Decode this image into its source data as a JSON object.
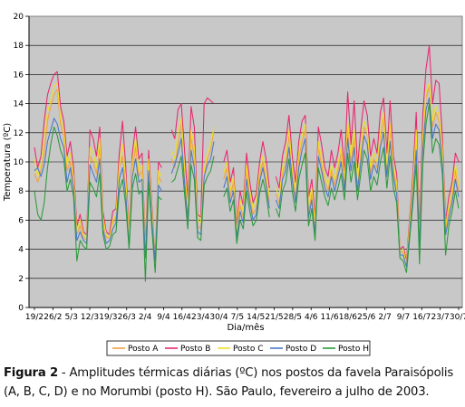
{
  "caption": {
    "label": "Figura 2",
    "text": " - Amplitudes térmicas diárias (ºC) nos postos da favela Paraisópolis (A, B, C, D) e no Morumbi (posto H). São Paulo, fevereiro a julho de 2003."
  },
  "chart_data": {
    "type": "line",
    "xlabel": "Dia/mês",
    "ylabel": "Temperatura (ºC)",
    "ylim": [
      0,
      20
    ],
    "yticks": [
      0,
      2,
      4,
      6,
      8,
      10,
      12,
      14,
      16,
      18,
      20
    ],
    "x_tick_labels": [
      "19/2",
      "26/2",
      "5/3",
      "12/3",
      "19/3",
      "26/3",
      "2/4",
      "9/4",
      "16/4",
      "23/4",
      "30/4",
      "7/5",
      "14/5",
      "21/5",
      "28/5",
      "4/6",
      "11/6",
      "18/6",
      "25/6",
      "2/7",
      "9/7",
      "16/7",
      "23/7",
      "30/7"
    ],
    "grid": "horizontal",
    "legend_position": "bottom",
    "series": [
      {
        "name": "Posto A",
        "color": "#f2a040",
        "values": [
          9.2,
          8.6,
          9.4,
          10.6,
          12.8,
          13.8,
          14.6,
          15.0,
          12.6,
          11.8,
          9.4,
          10.0,
          8.6,
          5.0,
          5.6,
          4.8,
          4.6,
          10.4,
          10.0,
          9.2,
          11.0,
          6.0,
          4.8,
          4.8,
          5.8,
          6.2,
          9.6,
          10.4,
          8.4,
          4.6,
          9.6,
          11.0,
          9.0,
          9.4,
          3.6,
          9.8,
          6.4,
          3.2,
          9.0,
          8.6,
          null,
          null,
          10.2,
          9.6,
          11.2,
          12.6,
          9.2,
          6.4,
          11.6,
          10.4,
          5.6,
          5.4,
          9.0,
          10.2,
          10.8,
          12.2,
          null,
          null,
          8.8,
          9.6,
          7.6,
          8.6,
          5.0,
          7.0,
          6.2,
          9.4,
          7.6,
          6.4,
          6.8,
          9.0,
          10.0,
          8.8,
          7.2,
          null,
          7.8,
          7.2,
          9.2,
          9.8,
          11.8,
          9.2,
          7.6,
          10.2,
          11.4,
          12.2,
          6.6,
          7.8,
          5.4,
          11.0,
          9.8,
          8.6,
          8.0,
          9.4,
          8.4,
          9.4,
          10.6,
          8.4,
          12.2,
          10.0,
          11.6,
          8.4,
          10.6,
          12.4,
          11.8,
          9.2,
          10.2,
          9.6,
          11.6,
          13.0,
          9.4,
          12.2,
          9.4,
          8.2,
          3.8,
          3.8,
          2.8,
          5.6,
          8.2,
          11.8,
          4.4,
          11.4,
          14.4,
          15.2,
          12.4,
          13.4,
          12.8,
          10.6,
          5.4,
          6.6,
          7.6,
          9.4,
          8.0
        ],
        "count": 0
      },
      {
        "name": "Posto B",
        "color": "#e8266e",
        "values": [
          11.0,
          9.6,
          10.4,
          12.8,
          14.6,
          15.4,
          16.0,
          16.2,
          13.8,
          12.8,
          10.4,
          11.4,
          9.6,
          5.6,
          6.4,
          5.2,
          5.0,
          12.2,
          11.6,
          10.4,
          12.4,
          6.6,
          5.2,
          5.0,
          6.6,
          6.8,
          10.6,
          12.8,
          9.6,
          5.0,
          10.6,
          12.4,
          10.2,
          10.6,
          4.0,
          10.8,
          7.0,
          3.2,
          10.0,
          9.6,
          null,
          null,
          12.2,
          11.6,
          13.6,
          14.0,
          10.8,
          7.4,
          13.8,
          12.4,
          6.4,
          6.2,
          14.0,
          14.4,
          14.2,
          14.0,
          null,
          null,
          10.0,
          10.8,
          8.6,
          9.6,
          5.6,
          8.0,
          7.0,
          10.6,
          8.6,
          7.2,
          7.8,
          10.0,
          11.4,
          10.2,
          8.2,
          null,
          9.0,
          8.2,
          10.4,
          11.4,
          13.2,
          10.4,
          8.6,
          11.4,
          12.8,
          13.2,
          7.6,
          8.8,
          6.2,
          12.4,
          11.2,
          9.6,
          9.0,
          10.8,
          9.6,
          10.6,
          12.2,
          9.4,
          14.8,
          11.2,
          14.2,
          9.6,
          12.2,
          14.2,
          13.2,
          10.4,
          11.6,
          10.6,
          13.4,
          14.4,
          10.6,
          14.2,
          10.4,
          9.2,
          4.0,
          4.2,
          3.2,
          6.2,
          9.2,
          13.4,
          5.2,
          13.2,
          16.4,
          18.0,
          14.0,
          15.6,
          15.4,
          11.8,
          6.0,
          7.6,
          8.6,
          10.6,
          10.0
        ],
        "count": 0
      },
      {
        "name": "Posto C",
        "color": "#f0e020",
        "values": [
          10.2,
          9.0,
          9.8,
          11.8,
          13.4,
          14.2,
          15.2,
          15.4,
          13.0,
          12.2,
          9.8,
          10.6,
          9.0,
          5.2,
          6.0,
          5.0,
          4.8,
          11.0,
          10.6,
          9.6,
          11.6,
          6.2,
          5.0,
          4.8,
          6.0,
          6.4,
          9.8,
          11.2,
          8.8,
          4.8,
          10.0,
          11.6,
          9.4,
          9.8,
          3.8,
          10.2,
          6.6,
          3.2,
          9.4,
          9.0,
          null,
          null,
          10.8,
          10.2,
          12.0,
          13.0,
          9.6,
          6.8,
          12.2,
          11.0,
          6.0,
          5.8,
          9.4,
          10.6,
          11.2,
          12.4,
          null,
          null,
          9.2,
          10.0,
          8.0,
          9.0,
          5.2,
          7.4,
          6.6,
          9.8,
          8.0,
          6.8,
          7.2,
          9.4,
          10.4,
          9.2,
          7.6,
          null,
          8.2,
          7.6,
          9.6,
          10.4,
          12.2,
          9.6,
          8.0,
          10.6,
          11.8,
          12.6,
          7.0,
          8.2,
          5.8,
          11.4,
          10.2,
          9.0,
          8.4,
          9.8,
          8.8,
          9.8,
          11.0,
          8.8,
          12.8,
          10.4,
          12.2,
          8.8,
          11.0,
          12.8,
          12.2,
          9.6,
          10.6,
          10.0,
          12.0,
          13.4,
          9.8,
          12.6,
          9.8,
          8.6,
          3.9,
          4.0,
          3.0,
          5.8,
          8.6,
          12.2,
          4.6,
          11.8,
          14.8,
          15.4,
          12.8,
          13.8,
          13.2,
          11.0,
          5.6,
          7.0,
          8.0,
          9.8,
          8.4
        ],
        "count": 0
      },
      {
        "name": "Posto D",
        "color": "#4a78c8",
        "values": [
          9.4,
          9.6,
          9.0,
          9.8,
          11.4,
          12.2,
          13.0,
          12.6,
          11.6,
          11.0,
          8.6,
          9.6,
          8.2,
          4.6,
          5.2,
          4.6,
          4.4,
          9.8,
          9.2,
          8.6,
          10.2,
          5.4,
          4.4,
          4.6,
          5.4,
          5.8,
          8.8,
          9.6,
          7.8,
          4.2,
          9.0,
          10.2,
          8.6,
          8.8,
          3.4,
          9.4,
          6.0,
          3.2,
          8.4,
          8.0,
          null,
          null,
          9.2,
          9.8,
          10.6,
          11.6,
          8.6,
          6.0,
          10.8,
          9.6,
          5.2,
          5.0,
          9.0,
          9.8,
          10.2,
          11.4,
          null,
          null,
          8.2,
          9.0,
          7.2,
          8.0,
          4.8,
          6.6,
          5.8,
          8.8,
          7.2,
          6.0,
          6.4,
          8.6,
          9.6,
          8.4,
          6.8,
          null,
          7.4,
          6.8,
          8.8,
          9.4,
          11.0,
          8.8,
          7.2,
          9.6,
          10.8,
          11.6,
          6.2,
          7.4,
          5.0,
          10.4,
          9.4,
          8.2,
          7.6,
          9.0,
          8.0,
          9.0,
          10.0,
          8.0,
          11.6,
          9.4,
          11.0,
          8.0,
          10.0,
          11.8,
          11.2,
          8.8,
          9.8,
          9.2,
          11.0,
          12.0,
          9.0,
          11.4,
          9.0,
          7.8,
          3.6,
          3.6,
          2.8,
          5.2,
          7.8,
          10.8,
          4.2,
          10.8,
          13.6,
          14.4,
          11.6,
          12.6,
          12.2,
          10.0,
          5.0,
          6.2,
          7.2,
          8.8,
          7.6
        ],
        "count": 0
      },
      {
        "name": "Posto H",
        "color": "#2a9a3a",
        "values": [
          8.0,
          6.4,
          6.0,
          7.2,
          9.6,
          11.2,
          12.4,
          11.8,
          10.8,
          10.2,
          8.0,
          8.8,
          7.6,
          3.2,
          4.6,
          4.2,
          4.0,
          8.6,
          8.2,
          7.6,
          9.2,
          5.0,
          4.0,
          4.2,
          5.0,
          5.2,
          8.0,
          8.8,
          7.0,
          4.0,
          8.2,
          9.2,
          7.8,
          8.0,
          1.8,
          8.6,
          5.4,
          2.4,
          7.6,
          7.4,
          null,
          null,
          8.6,
          8.8,
          9.6,
          10.4,
          7.8,
          5.4,
          9.8,
          8.8,
          4.8,
          4.6,
          8.4,
          9.0,
          9.4,
          10.4,
          null,
          null,
          7.6,
          8.2,
          6.6,
          7.4,
          4.4,
          6.0,
          5.4,
          8.0,
          6.6,
          5.6,
          6.0,
          7.8,
          8.8,
          7.8,
          6.2,
          null,
          6.8,
          6.2,
          8.0,
          8.6,
          10.2,
          8.0,
          6.6,
          8.8,
          9.8,
          10.6,
          5.6,
          6.8,
          4.6,
          9.6,
          8.6,
          7.6,
          7.0,
          8.2,
          7.4,
          8.2,
          9.2,
          7.4,
          10.6,
          8.6,
          10.0,
          7.4,
          9.2,
          10.8,
          10.2,
          8.0,
          9.0,
          8.4,
          10.0,
          11.0,
          8.2,
          10.4,
          8.2,
          7.2,
          3.4,
          3.2,
          2.4,
          4.8,
          7.2,
          9.8,
          3.0,
          9.8,
          12.6,
          14.0,
          10.6,
          11.6,
          11.2,
          9.2,
          3.6,
          5.6,
          6.6,
          8.0,
          6.8
        ],
        "count": 0
      }
    ]
  }
}
